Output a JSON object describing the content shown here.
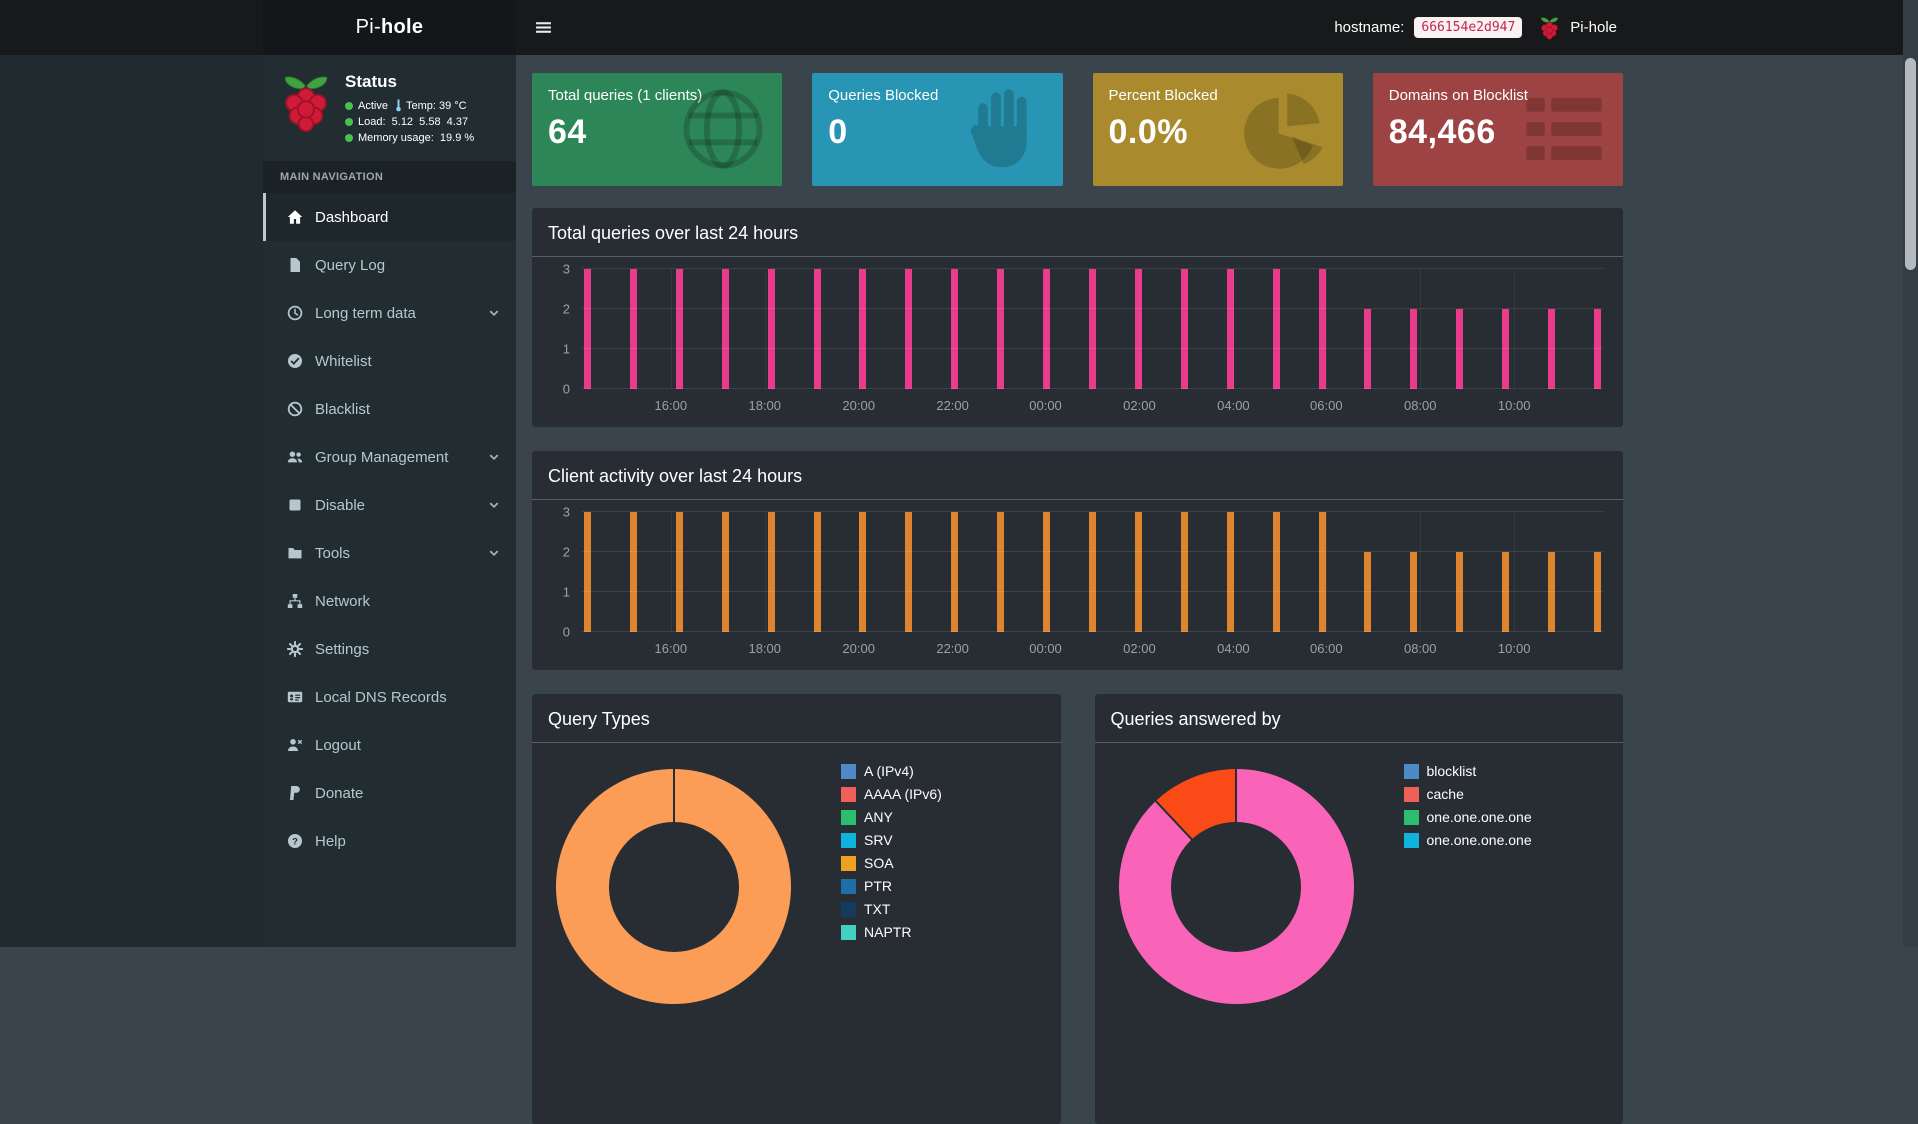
{
  "navbar": {
    "logo_prefix": "Pi-",
    "logo_bold": "hole",
    "hostname_label": "hostname:",
    "hostname_value": "666154e2d947",
    "user_brand": "Pi-hole"
  },
  "sidebar": {
    "status": {
      "title": "Status",
      "active_label": "Active",
      "temp_label": "Temp: 39 °C",
      "load_label": "Load:  5.12  5.58  4.37",
      "memory_label": "Memory usage:  19.9 %"
    },
    "nav_header": "MAIN NAVIGATION",
    "items": [
      {
        "label": "Dashboard",
        "icon": "home-icon",
        "active": true
      },
      {
        "label": "Query Log",
        "icon": "file-icon"
      },
      {
        "label": "Long term data",
        "icon": "clock-icon",
        "expandable": true
      },
      {
        "label": "Whitelist",
        "icon": "check-circle-icon"
      },
      {
        "label": "Blacklist",
        "icon": "ban-icon"
      },
      {
        "label": "Group Management",
        "icon": "users-icon",
        "expandable": true
      },
      {
        "label": "Disable",
        "icon": "stop-icon",
        "expandable": true
      },
      {
        "label": "Tools",
        "icon": "folder-icon",
        "expandable": true
      },
      {
        "label": "Network",
        "icon": "network-icon"
      },
      {
        "label": "Settings",
        "icon": "gears-icon"
      },
      {
        "label": "Local DNS Records",
        "icon": "address-card-icon"
      },
      {
        "label": "Logout",
        "icon": "user-times-icon"
      },
      {
        "label": "Donate",
        "icon": "paypal-icon"
      },
      {
        "label": "Help",
        "icon": "question-circle-icon"
      }
    ]
  },
  "cards": [
    {
      "title": "Total queries (1 clients)",
      "value": "64",
      "color": "#2d8657",
      "icon": "globe-icon"
    },
    {
      "title": "Queries Blocked",
      "value": "0",
      "color": "#2795b3",
      "icon": "hand-icon"
    },
    {
      "title": "Percent Blocked",
      "value": "0.0%",
      "color": "#a98b2d",
      "icon": "pie-chart-icon"
    },
    {
      "title": "Domains on Blocklist",
      "value": "84,466",
      "color": "#9e4343",
      "icon": "list-icon"
    }
  ],
  "panels": {
    "queries": {
      "title": "Total queries over last 24 hours"
    },
    "clients": {
      "title": "Client activity over last 24 hours"
    },
    "query_types": {
      "title": "Query Types"
    },
    "answered_by": {
      "title": "Queries answered by"
    }
  },
  "chart_data": [
    {
      "type": "bar",
      "title": "Total queries over last 24 hours",
      "x_tick_labels": [
        "16:00",
        "18:00",
        "20:00",
        "22:00",
        "00:00",
        "02:00",
        "04:00",
        "06:00",
        "08:00",
        "10:00"
      ],
      "tick_positions_pct": [
        8.7,
        17.9,
        27.1,
        36.3,
        45.4,
        54.6,
        63.8,
        72.9,
        82.1,
        91.3
      ],
      "values": [
        3,
        3,
        3,
        3,
        3,
        3,
        3,
        3,
        3,
        3,
        3,
        3,
        3,
        3,
        3,
        3,
        3,
        2,
        2,
        2,
        2,
        2,
        2
      ],
      "y_ticks": [
        0,
        1,
        2,
        3
      ],
      "ylim": [
        0,
        3
      ],
      "bar_color": "#e93a8c",
      "grid": true
    },
    {
      "type": "bar",
      "title": "Client activity over last 24 hours",
      "x_tick_labels": [
        "16:00",
        "18:00",
        "20:00",
        "22:00",
        "00:00",
        "02:00",
        "04:00",
        "06:00",
        "08:00",
        "10:00"
      ],
      "tick_positions_pct": [
        8.7,
        17.9,
        27.1,
        36.3,
        45.4,
        54.6,
        63.8,
        72.9,
        82.1,
        91.3
      ],
      "values": [
        3,
        3,
        3,
        3,
        3,
        3,
        3,
        3,
        3,
        3,
        3,
        3,
        3,
        3,
        3,
        3,
        3,
        2,
        2,
        2,
        2,
        2,
        2
      ],
      "y_ticks": [
        0,
        1,
        2,
        3
      ],
      "ylim": [
        0,
        3
      ],
      "bar_color": "#dc842e",
      "grid": true
    },
    {
      "type": "doughnut",
      "title": "Query Types",
      "slices": [
        {
          "value": 100,
          "color": "#fb9d57"
        }
      ],
      "legend_position": "right",
      "legend": [
        {
          "label": "A (IPv4)",
          "color": "#4c8bc8"
        },
        {
          "label": "AAAA (IPv6)",
          "color": "#ef6056"
        },
        {
          "label": "ANY",
          "color": "#2dbd6e"
        },
        {
          "label": "SRV",
          "color": "#0fb3dd"
        },
        {
          "label": "SOA",
          "color": "#eca220"
        },
        {
          "label": "PTR",
          "color": "#1d6fa8"
        },
        {
          "label": "TXT",
          "color": "#143a5e"
        },
        {
          "label": "NAPTR",
          "color": "#41d0c2"
        }
      ]
    },
    {
      "type": "doughnut",
      "title": "Queries answered by",
      "slices": [
        {
          "value": 88,
          "color": "#f964b8"
        },
        {
          "value": 12,
          "color": "#fa4a18"
        }
      ],
      "legend_position": "right",
      "legend": [
        {
          "label": "blocklist",
          "color": "#4c8bc8"
        },
        {
          "label": "cache",
          "color": "#ef6056"
        },
        {
          "label": "one.one.one.one",
          "color": "#2dbd6e"
        },
        {
          "label": "one.one.one.one",
          "color": "#0fb3dd"
        }
      ]
    }
  ]
}
